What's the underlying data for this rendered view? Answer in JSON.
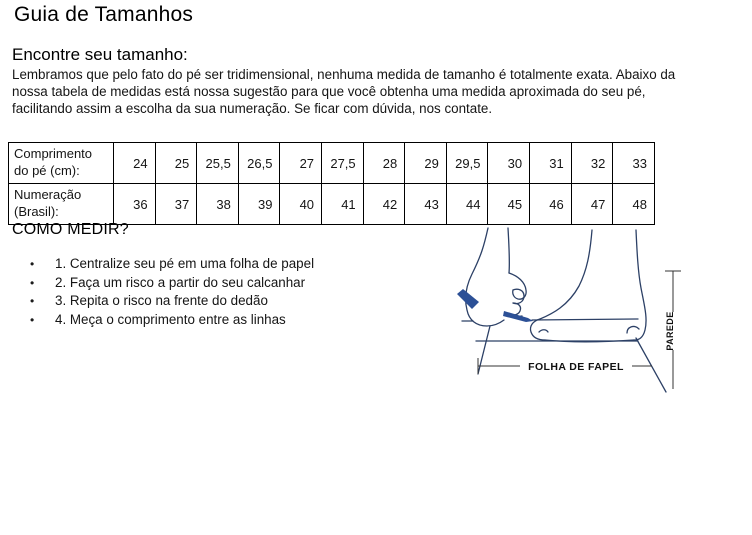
{
  "page": {
    "title": "Guia de Tamanhos"
  },
  "find_size": {
    "heading": "Encontre seu tamanho:",
    "body": "Lembramos que pelo fato do pé ser tridimensional, nenhuma medida de tamanho é totalmente exata. Abaixo da nossa tabela de medidas está nossa sugestão para que você obtenha uma medida aproximada do seu pé, facilitando assim a escolha da sua numeração. Se ficar com dúvida, nos contate."
  },
  "size_table": {
    "rows": [
      {
        "label": "Comprimento do pé (cm):",
        "values": [
          "24",
          "25",
          "25,5",
          "26,5",
          "27",
          "27,5",
          "28",
          "29",
          "29,5",
          "30",
          "31",
          "32",
          "33"
        ]
      },
      {
        "label": "Numeração (Brasil):",
        "values": [
          "36",
          "37",
          "38",
          "39",
          "40",
          "41",
          "42",
          "43",
          "44",
          "45",
          "46",
          "47",
          "48"
        ]
      }
    ]
  },
  "how_to": {
    "heading": "COMO MEDIR?",
    "steps": [
      "1. Centralize seu pé em uma folha de papel",
      "2. Faça um risco a partir do seu calcanhar",
      "3. Repita o risco na frente do dedão",
      "4. Meça o comprimento entre as linhas"
    ]
  },
  "diagram": {
    "paper_label": "FOLHA DE FAPEL",
    "wall_label": "PAREDE",
    "outline_color": "#2c4066",
    "pen_color": "#2c5096",
    "dimension_color": "#333333"
  }
}
